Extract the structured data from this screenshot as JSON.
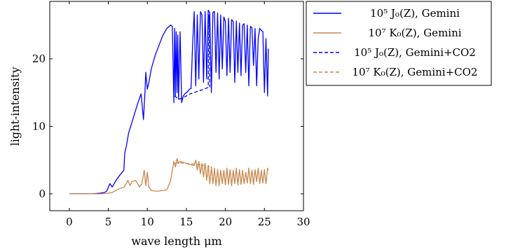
{
  "chart_data": {
    "type": "line",
    "title": "",
    "xlabel": "wave length μm",
    "ylabel": "light-intensity",
    "xlim": [
      -2.5,
      30
    ],
    "ylim": [
      -2.5,
      28.5
    ],
    "xticks": [
      0,
      5,
      10,
      15,
      20,
      25,
      30
    ],
    "yticks": [
      0,
      10,
      20
    ],
    "grid": false,
    "legend_position": "top-right, outside plot",
    "series": [
      {
        "name": "10^5 J_0(Z), Gemini",
        "color": "#0000ff",
        "dash": "solid",
        "x": [
          0.0,
          1.5,
          3.0,
          4.0,
          4.5,
          4.8,
          5.2,
          5.5,
          6.0,
          6.5,
          7.0,
          7.1,
          7.3,
          7.6,
          8.0,
          8.4,
          8.8,
          9.2,
          9.5,
          9.7,
          9.8,
          10.0,
          10.2,
          10.5,
          11.0,
          11.5,
          12.0,
          12.5,
          13.0,
          13.2,
          13.4,
          13.5,
          13.6,
          13.7,
          13.8,
          13.9,
          14.0,
          14.2,
          14.4,
          14.6,
          14.8,
          15.0,
          15.2,
          15.4,
          15.6,
          15.8,
          16.0,
          16.2,
          16.4,
          16.6,
          16.8,
          17.0,
          17.2,
          17.4,
          17.6,
          17.8,
          18.0,
          18.2,
          18.4,
          18.6,
          18.8,
          19.0,
          19.2,
          19.4,
          19.6,
          19.8,
          20.0,
          20.2,
          20.4,
          20.6,
          20.8,
          21.0,
          21.2,
          21.4,
          21.6,
          21.8,
          22.0,
          22.2,
          22.4,
          22.6,
          22.8,
          23.0,
          23.2,
          23.4,
          23.6,
          23.8,
          24.0,
          24.2,
          24.4,
          24.6,
          24.8,
          25.0,
          25.2,
          25.4,
          25.5
        ],
        "values": [
          0.0,
          0.0,
          0.0,
          0.1,
          0.2,
          0.4,
          1.5,
          1.0,
          2.0,
          2.8,
          3.5,
          6.0,
          7.0,
          9.0,
          10.5,
          12.0,
          13.5,
          14.8,
          11.0,
          15.2,
          18.0,
          15.5,
          16.5,
          18.5,
          20.5,
          22.0,
          23.5,
          24.5,
          25.0,
          24.8,
          13.5,
          24.5,
          14.5,
          24.0,
          15.0,
          23.5,
          14.0,
          24.0,
          13.5,
          14.5,
          14.8,
          15.0,
          15.2,
          15.5,
          15.6,
          22.0,
          27.0,
          16.0,
          26.5,
          17.0,
          27.0,
          26.5,
          16.5,
          27.0,
          17.0,
          27.2,
          26.8,
          15.0,
          26.9,
          27.0,
          18.0,
          26.8,
          17.0,
          26.5,
          18.5,
          26.2,
          25.5,
          17.5,
          26.0,
          18.0,
          25.8,
          25.5,
          16.5,
          25.6,
          18.0,
          25.3,
          17.5,
          25.0,
          25.2,
          18.0,
          25.0,
          16.0,
          24.8,
          24.6,
          19.0,
          24.5,
          16.0,
          23.0,
          24.5,
          24.2,
          24.0,
          15.0,
          23.0,
          14.5,
          21.5
        ]
      },
      {
        "name": "10^7 K_0(Z), Gemini",
        "color": "#c8864a",
        "dash": "solid",
        "x": [
          0.0,
          2.0,
          4.0,
          4.5,
          5.0,
          5.5,
          6.0,
          6.5,
          7.0,
          7.3,
          7.5,
          7.8,
          8.0,
          8.5,
          9.0,
          9.3,
          9.6,
          9.8,
          10.0,
          10.2,
          10.5,
          11.0,
          11.5,
          12.0,
          12.5,
          13.0,
          13.2,
          13.4,
          13.6,
          13.8,
          14.0,
          14.2,
          14.5,
          15.0,
          15.5,
          16.0,
          16.2,
          16.4,
          16.6,
          16.8,
          17.0,
          17.2,
          17.4,
          17.6,
          17.8,
          18.0,
          18.2,
          18.4,
          18.6,
          18.8,
          19.0,
          19.2,
          19.4,
          19.6,
          19.8,
          20.0,
          20.2,
          20.4,
          20.6,
          20.8,
          21.0,
          21.2,
          21.4,
          21.6,
          21.8,
          22.0,
          22.2,
          22.4,
          22.6,
          22.8,
          23.0,
          23.2,
          23.4,
          23.6,
          23.8,
          24.0,
          24.2,
          24.4,
          24.6,
          24.8,
          25.0,
          25.2,
          25.4,
          25.5
        ],
        "values": [
          0.0,
          0.0,
          0.0,
          0.05,
          0.1,
          0.2,
          0.5,
          0.8,
          1.0,
          1.5,
          2.0,
          1.2,
          1.8,
          2.0,
          1.0,
          1.5,
          3.5,
          1.2,
          3.2,
          1.0,
          0.5,
          0.4,
          0.4,
          0.5,
          0.6,
          2.0,
          3.5,
          4.8,
          4.0,
          5.2,
          4.5,
          4.8,
          4.7,
          4.5,
          4.3,
          4.2,
          5.0,
          3.5,
          4.8,
          3.0,
          4.5,
          2.5,
          4.5,
          2.0,
          4.2,
          1.5,
          4.0,
          1.5,
          3.8,
          1.2,
          3.6,
          1.2,
          3.5,
          1.5,
          3.5,
          1.3,
          3.8,
          1.4,
          3.6,
          1.2,
          3.5,
          1.5,
          3.8,
          1.3,
          3.6,
          1.4,
          3.5,
          1.5,
          3.2,
          1.6,
          3.8,
          1.5,
          3.5,
          1.4,
          3.6,
          1.8,
          3.8,
          1.5,
          3.5,
          1.6,
          3.6,
          1.5,
          3.8,
          3.5
        ]
      },
      {
        "name": "10^5 J_0(Z), Gemini+CO2",
        "color": "#0000ff",
        "dash": "dashed",
        "x": [
          13.5,
          14.0,
          14.5,
          15.0,
          15.5,
          16.0,
          16.5,
          17.0,
          17.5,
          17.8,
          17.9,
          18.0
        ],
        "values": [
          14.5,
          14.0,
          14.2,
          14.5,
          14.8,
          15.0,
          15.2,
          15.4,
          15.6,
          15.8,
          26.5,
          15.8
        ]
      },
      {
        "name": "10^7 K_0(Z), Gemini+CO2",
        "color": "#c8864a",
        "dash": "dashed",
        "x": [
          13.5,
          14.0,
          15.0,
          16.0,
          17.0,
          18.0
        ],
        "values": [
          4.5,
          4.6,
          4.5,
          4.4,
          4.3,
          4.0
        ]
      }
    ]
  }
}
